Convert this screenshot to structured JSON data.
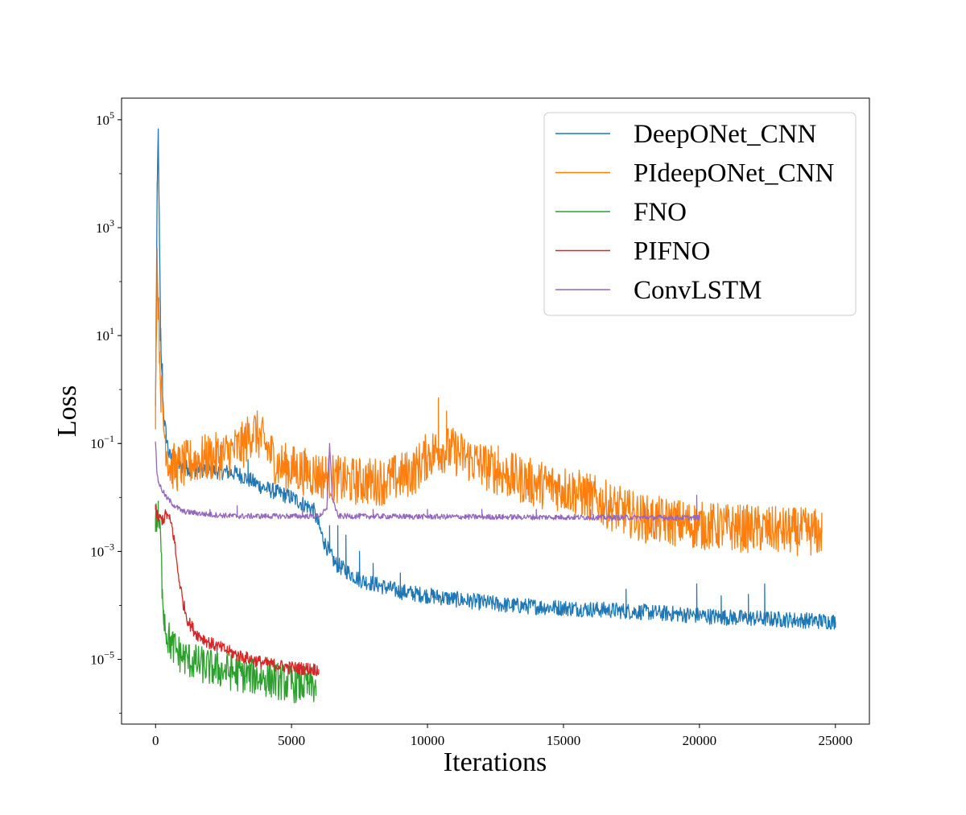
{
  "chart_data": {
    "type": "line",
    "title": "",
    "xlabel": "Iterations",
    "ylabel": "Loss",
    "xlim": [
      -1250,
      26250
    ],
    "ylim_log10": [
      -6.2,
      5.4
    ],
    "yscale": "log",
    "grid": false,
    "legend_position": "top-right",
    "xticks": [
      0,
      5000,
      10000,
      15000,
      20000,
      25000
    ],
    "xtick_labels": [
      "0",
      "5000",
      "10000",
      "15000",
      "20000",
      "25000"
    ],
    "yticks": [
      {
        "exp": 5,
        "base": "10",
        "sup": "5"
      },
      {
        "exp": 3,
        "base": "10",
        "sup": "3"
      },
      {
        "exp": 1,
        "base": "10",
        "sup": "1"
      },
      {
        "exp": -1,
        "base": "10",
        "sup": "−1"
      },
      {
        "exp": -3,
        "base": "10",
        "sup": "−3"
      },
      {
        "exp": -5,
        "base": "10",
        "sup": "−5"
      }
    ],
    "series": [
      {
        "name": "DeepONet_CNN",
        "color": "#1f77b4",
        "x": [
          0,
          60,
          100,
          140,
          200,
          300,
          500,
          800,
          1200,
          2000,
          3000,
          4000,
          5000,
          5800,
          6200,
          6600,
          7500,
          9000,
          11000,
          13000,
          15000,
          17000,
          19000,
          21000,
          23000,
          25000
        ],
        "y": [
          0.5,
          5000,
          60000,
          800,
          5,
          0.3,
          0.06,
          0.04,
          0.035,
          0.032,
          0.028,
          0.015,
          0.01,
          0.006,
          0.0015,
          0.0006,
          0.0003,
          0.00018,
          0.00013,
          0.0001,
          9e-05,
          8e-05,
          7e-05,
          6e-05,
          5.5e-05,
          5e-05
        ],
        "noise": 0.15,
        "spikes": [
          [
            180,
            8
          ],
          [
            250,
            3
          ],
          [
            3400,
            0.05
          ],
          [
            6400,
            0.003
          ],
          [
            6700,
            0.003
          ],
          [
            7000,
            0.002
          ],
          [
            7500,
            0.001
          ],
          [
            8000,
            0.0006
          ],
          [
            9000,
            0.0004
          ],
          [
            17300,
            0.0002
          ],
          [
            19900,
            0.00025
          ],
          [
            20800,
            0.00015
          ],
          [
            21800,
            0.00016
          ],
          [
            22400,
            0.00025
          ]
        ]
      },
      {
        "name": "PIdeepONet_CNN",
        "color": "#ff7f0e",
        "x": [
          0,
          60,
          100,
          150,
          200,
          300,
          500,
          800,
          1500,
          2500,
          3200,
          3600,
          4000,
          4500,
          5500,
          7000,
          8500,
          9500,
          10000,
          10500,
          11000,
          12000,
          13000,
          14000,
          15000,
          16000,
          17000,
          18000,
          19000,
          20000,
          21000,
          22000,
          23000,
          24000,
          24500
        ],
        "y": [
          0.5,
          300,
          50,
          5,
          1,
          0.2,
          0.04,
          0.035,
          0.05,
          0.06,
          0.09,
          0.18,
          0.1,
          0.04,
          0.03,
          0.02,
          0.02,
          0.03,
          0.06,
          0.08,
          0.07,
          0.04,
          0.025,
          0.018,
          0.015,
          0.01,
          0.006,
          0.004,
          0.0035,
          0.003,
          0.0028,
          0.0026,
          0.0024,
          0.0023,
          0.0022
        ],
        "noise": 0.45,
        "spikes": [
          [
            10400,
            0.7
          ],
          [
            10700,
            0.4
          ],
          [
            12600,
            0.09
          ],
          [
            16000,
            0.007
          ],
          [
            17400,
            0.008
          ],
          [
            18000,
            0.007
          ],
          [
            19200,
            0.006
          ],
          [
            21500,
            0.005
          ],
          [
            23400,
            0.0045
          ]
        ]
      },
      {
        "name": "FNO",
        "color": "#2ca02c",
        "x": [
          0,
          100,
          150,
          200,
          250,
          300,
          400,
          600,
          1000,
          1500,
          2000,
          3000,
          4000,
          5000,
          5900
        ],
        "y": [
          0.004,
          0.004,
          0.003,
          0.001,
          0.0002,
          8e-05,
          3e-05,
          1.8e-05,
          1.1e-05,
          8.5e-06,
          7e-06,
          5.5e-06,
          4.5e-06,
          3.5e-06,
          3.2e-06
        ],
        "noise": 0.35,
        "spikes": []
      },
      {
        "name": "PIFNO",
        "color": "#d62728",
        "x": [
          0,
          100,
          300,
          400,
          500,
          600,
          700,
          800,
          1000,
          1200,
          1500,
          2000,
          3000,
          4000,
          5000,
          6000
        ],
        "y": [
          0.006,
          0.004,
          0.004,
          0.005,
          0.004,
          0.003,
          0.0015,
          0.0005,
          0.00012,
          5e-05,
          3e-05,
          2e-05,
          1.2e-05,
          8.5e-06,
          7e-06,
          6.5e-06
        ],
        "noise": 0.12,
        "spikes": []
      },
      {
        "name": "ConvLSTM",
        "color": "#9467bd",
        "x": [
          0,
          50,
          100,
          200,
          400,
          700,
          1000,
          2000,
          3000,
          4000,
          5000,
          6000,
          6300,
          6400,
          6500,
          6700,
          7000,
          10000,
          15000,
          20000
        ],
        "y": [
          0.1,
          0.03,
          0.02,
          0.015,
          0.01,
          0.007,
          0.0055,
          0.0048,
          0.0045,
          0.0045,
          0.0045,
          0.0045,
          0.006,
          0.1,
          0.01,
          0.0045,
          0.0045,
          0.0044,
          0.0043,
          0.0042
        ],
        "noise": 0.05,
        "spikes": [
          [
            5400,
            0.009
          ],
          [
            19900,
            0.011
          ],
          [
            2000,
            0.006
          ],
          [
            3000,
            0.007
          ],
          [
            8000,
            0.006
          ],
          [
            10000,
            0.006
          ],
          [
            12000,
            0.006
          ],
          [
            14000,
            0.006
          ],
          [
            16000,
            0.006
          ],
          [
            18000,
            0.006
          ]
        ]
      }
    ]
  }
}
